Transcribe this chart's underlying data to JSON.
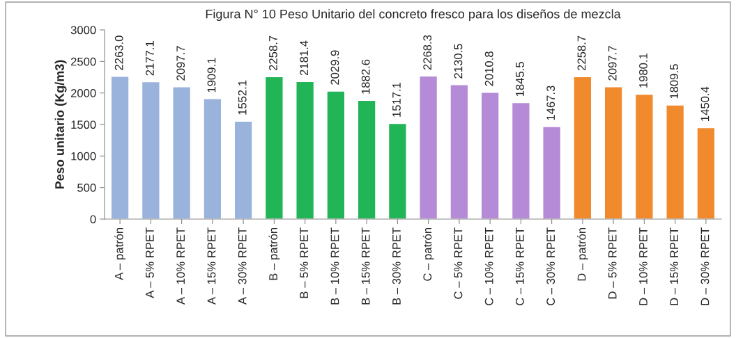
{
  "chart_data": {
    "type": "bar",
    "title": "Figura N° 10 Peso Unitario del concreto fresco para los diseños de mezcla",
    "ylabel": "Peso unitario (Kg/m3)",
    "categories": [
      "A – patrón",
      "A – 5% RPET",
      "A – 10% RPET",
      "A – 15% RPET",
      "A – 30% RPET",
      "B – patrón",
      "B – 5% RPET",
      "B – 10% RPET",
      "B – 15% RPET",
      "B – 30% RPET",
      "C – patrón",
      "C – 5% RPET",
      "C – 10% RPET",
      "C – 15% RPET",
      "C – 30% RPET",
      "D – patrón",
      "D – 5% RPET",
      "D – 10% RPET",
      "D – 15% RPET",
      "D – 30% RPET"
    ],
    "values": [
      2263.0,
      2177.1,
      2097.7,
      1909.1,
      1552.1,
      2258.7,
      2181.4,
      2029.9,
      1882.6,
      1517.1,
      2268.3,
      2130.5,
      2010.8,
      1845.5,
      1467.3,
      2258.7,
      2097.7,
      1980.1,
      1809.5,
      1450.4
    ],
    "value_labels": [
      "2263.0",
      "2177.1",
      "2097.7",
      "1909.1",
      "1552.1",
      "2258.7",
      "2181.4",
      "2029.9",
      "1882.6",
      "1517.1",
      "2268.3",
      "2130.5",
      "2010.8",
      "1845.5",
      "1467.3",
      "2258.7",
      "2097.7",
      "1980.1",
      "1809.5",
      "1450.4"
    ],
    "colors": [
      "#9ab3dd",
      "#9ab3dd",
      "#9ab3dd",
      "#9ab3dd",
      "#9ab3dd",
      "#22b557",
      "#22b557",
      "#22b557",
      "#22b557",
      "#22b557",
      "#b58ad6",
      "#b58ad6",
      "#b58ad6",
      "#b58ad6",
      "#b58ad6",
      "#f08a2c",
      "#f08a2c",
      "#f08a2c",
      "#f08a2c",
      "#f08a2c"
    ],
    "ylim": [
      0,
      3000
    ],
    "yticks": [
      0,
      500,
      1000,
      1500,
      2000,
      2500,
      3000
    ],
    "grid": false,
    "legend": false
  }
}
